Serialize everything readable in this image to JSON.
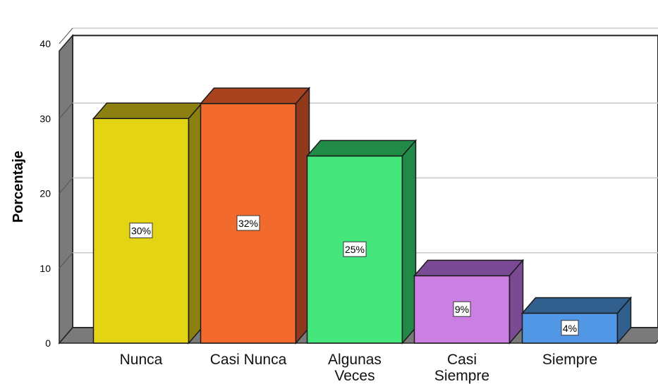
{
  "chart_data": {
    "type": "bar",
    "title": "",
    "xlabel": "",
    "ylabel": "Porcentaje",
    "ylim": [
      0,
      40
    ],
    "yticks": [
      0,
      10,
      20,
      30,
      40
    ],
    "grid": true,
    "legend": "none",
    "style": "3d",
    "categories": [
      {
        "label_lines": [
          "Nunca"
        ]
      },
      {
        "label_lines": [
          "Casi Nunca"
        ]
      },
      {
        "label_lines": [
          "Algunas",
          "Veces"
        ]
      },
      {
        "label_lines": [
          "Casi",
          "Siempre"
        ]
      },
      {
        "label_lines": [
          "Siempre"
        ]
      }
    ],
    "values": [
      30,
      32,
      25,
      9,
      4
    ],
    "data_labels": [
      "30%",
      "32%",
      "25%",
      "9%",
      "4%"
    ],
    "colors": [
      {
        "front": "#e3d514",
        "side": "#8c8010",
        "top": "#8c8010"
      },
      {
        "front": "#f26b2d",
        "side": "#8f3a1c",
        "top": "#a8421f"
      },
      {
        "front": "#45e67c",
        "side": "#218a47",
        "top": "#218a47"
      },
      {
        "front": "#cc7fe3",
        "side": "#7a4a94",
        "top": "#7a4a94"
      },
      {
        "front": "#5297e5",
        "side": "#31608e",
        "top": "#31608e"
      }
    ],
    "wall_color": "#ffffff",
    "floor_color": "#7a7a7a",
    "gridline_color": "#c8c8c8"
  }
}
